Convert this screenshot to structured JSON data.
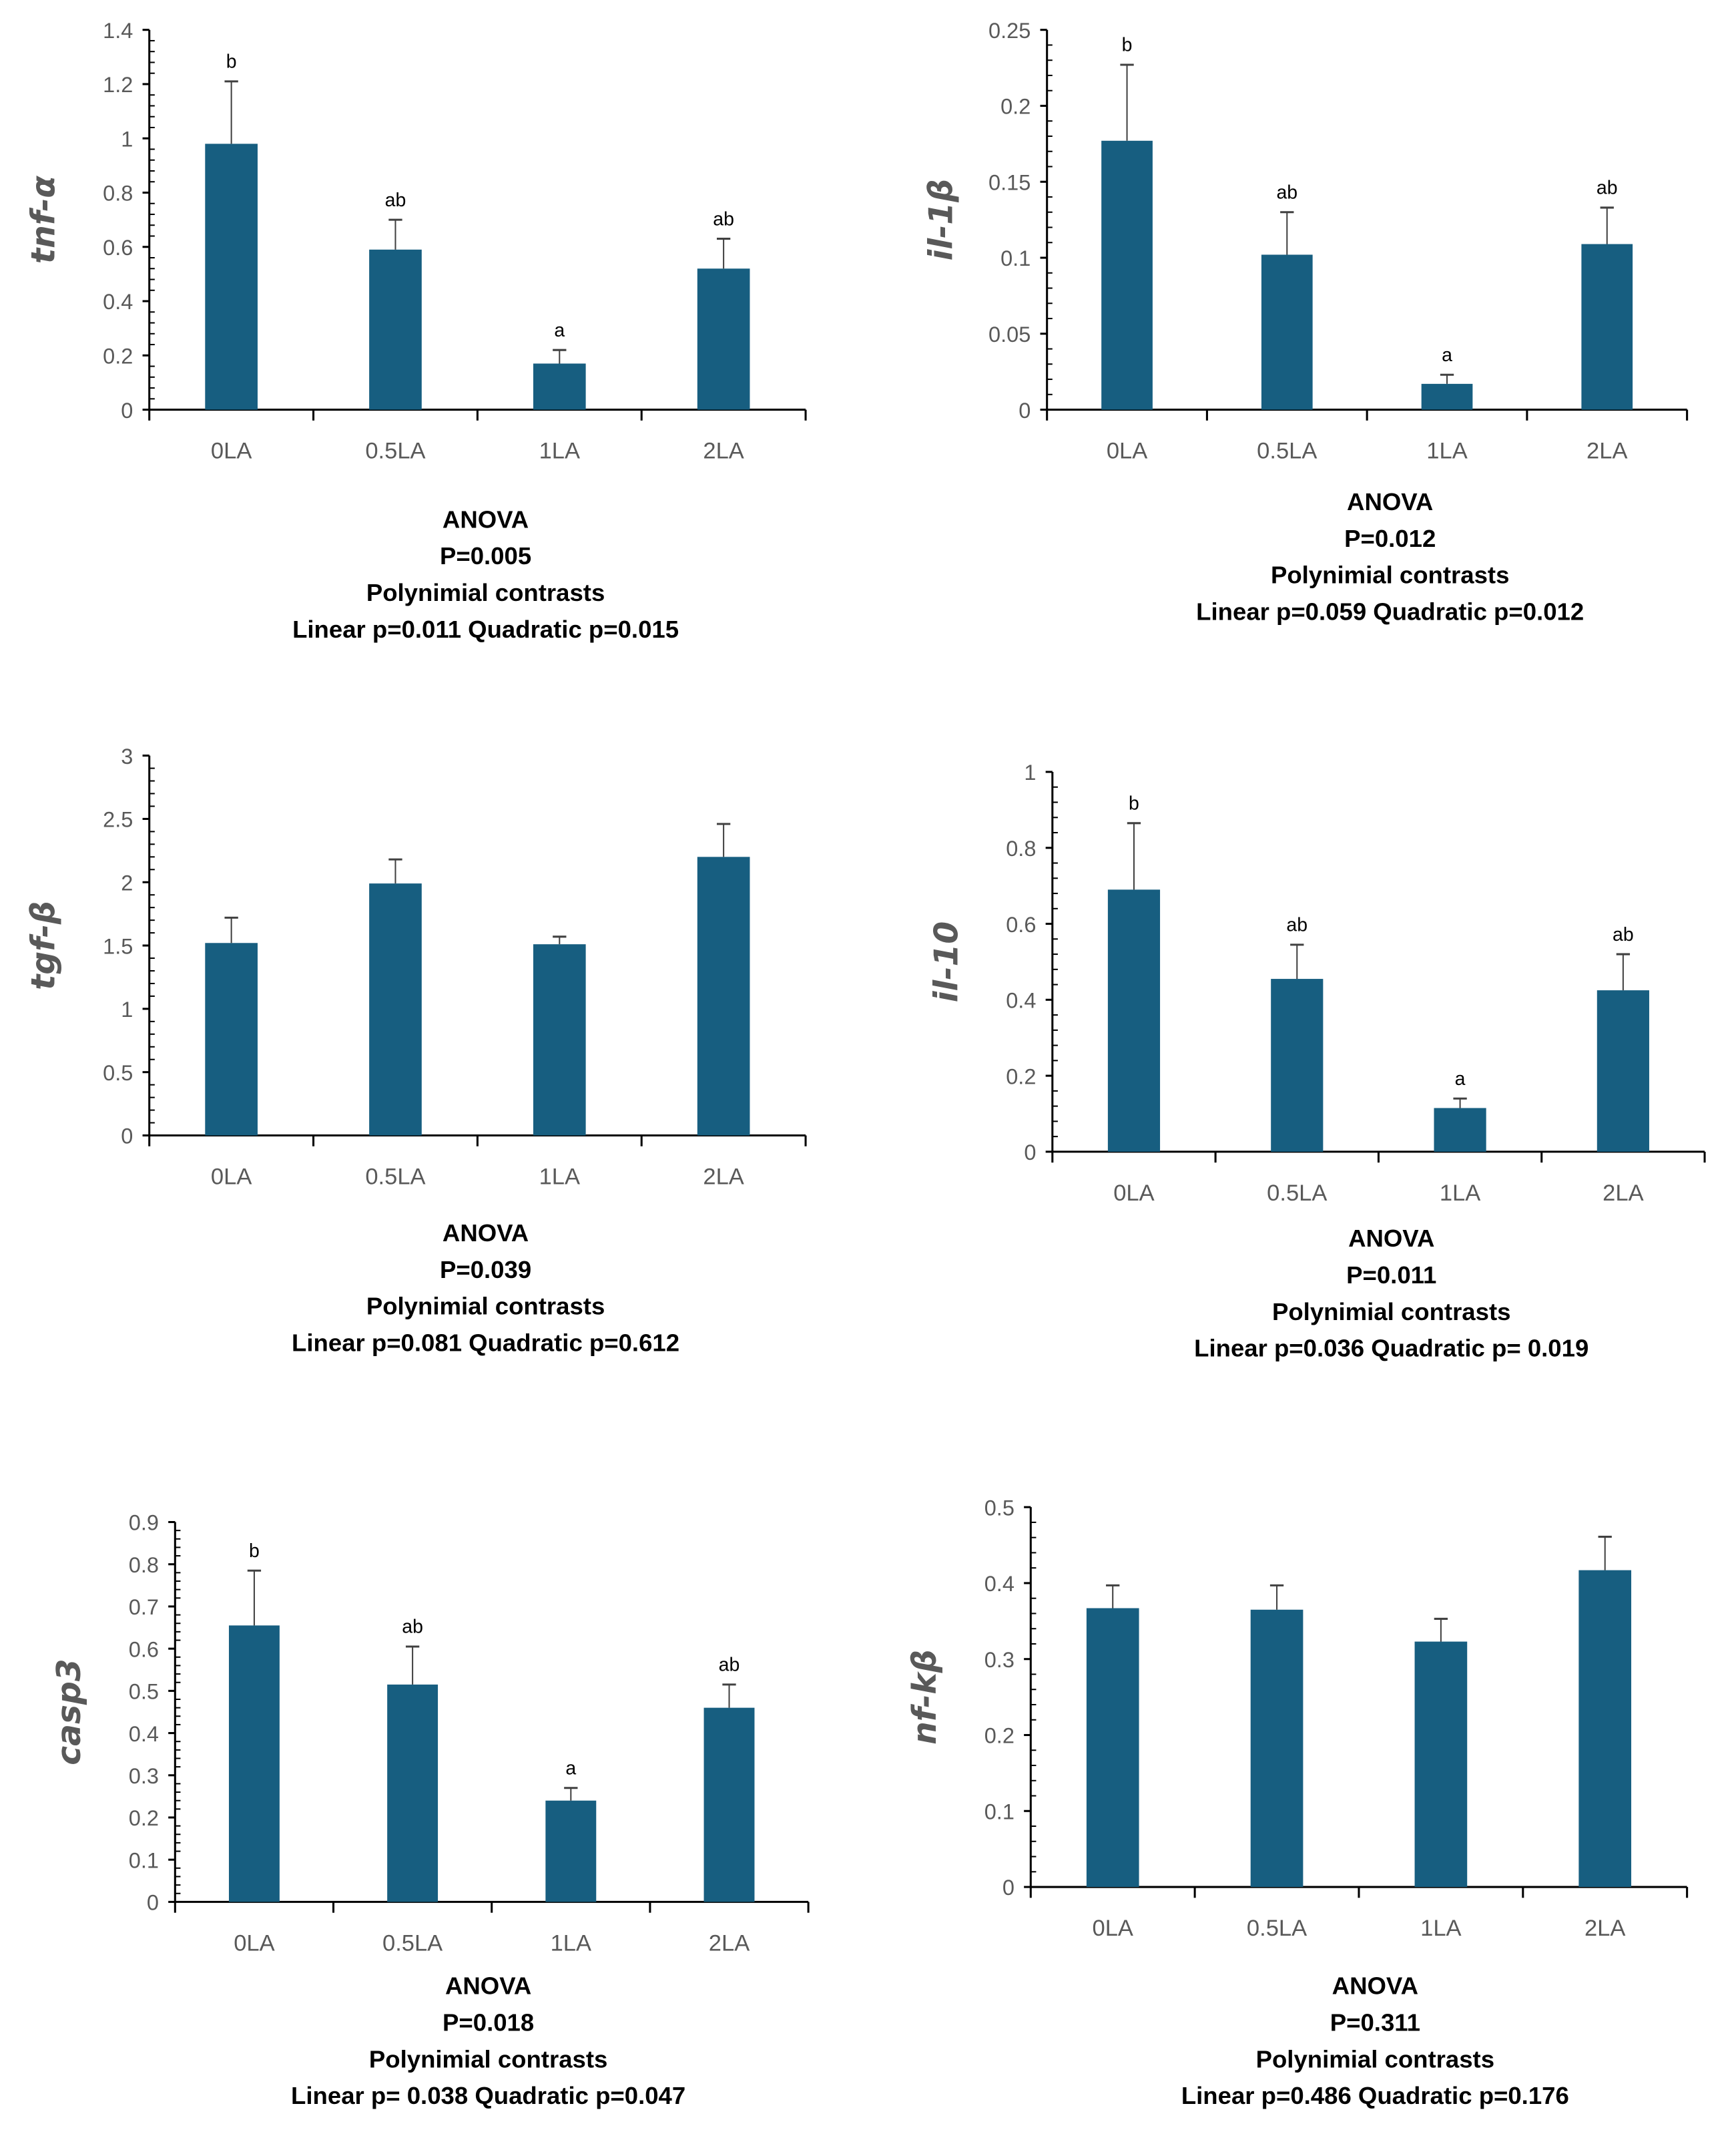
{
  "colors": {
    "bar": "#175e80",
    "axis": "#000000",
    "error_bar": "#404040",
    "tick_label": "#595959"
  },
  "chart_data": [
    {
      "type": "bar",
      "ylabel": "tnf-α",
      "categories": [
        "0LA",
        "0.5LA",
        "1LA",
        "2LA"
      ],
      "values": [
        0.98,
        0.59,
        0.17,
        0.52
      ],
      "error": [
        0.23,
        0.11,
        0.05,
        0.11
      ],
      "letters": [
        "b",
        "ab",
        "a",
        "ab"
      ],
      "ylim": [
        0,
        1.4
      ],
      "yticks": [
        "0",
        "0.2",
        "0.4",
        "0.6",
        "0.8",
        "1",
        "1.2",
        "1.4"
      ],
      "grid": false,
      "caption": [
        "ANOVA",
        "P=0.005",
        "Polynimial contrasts",
        "Linear p=0.011    Quadratic p=0.015"
      ]
    },
    {
      "type": "bar",
      "ylabel": "il-1β",
      "categories": [
        "0LA",
        "0.5LA",
        "1LA",
        "2LA"
      ],
      "values": [
        0.177,
        0.102,
        0.017,
        0.109
      ],
      "error": [
        0.05,
        0.028,
        0.006,
        0.024
      ],
      "letters": [
        "b",
        "ab",
        "a",
        "ab"
      ],
      "ylim": [
        0,
        0.25
      ],
      "yticks": [
        "0",
        "0.05",
        "0.1",
        "0.15",
        "0.2",
        "0.25"
      ],
      "grid": false,
      "caption": [
        "ANOVA",
        "P=0.012",
        "Polynimial contrasts",
        "Linear p=0.059    Quadratic p=0.012"
      ]
    },
    {
      "type": "bar",
      "ylabel": "tgf-β",
      "categories": [
        "0LA",
        "0.5LA",
        "1LA",
        "2LA"
      ],
      "values": [
        1.52,
        1.99,
        1.51,
        2.2
      ],
      "error": [
        0.2,
        0.19,
        0.06,
        0.26
      ],
      "letters": [
        "",
        "",
        "",
        ""
      ],
      "ylim": [
        0,
        3
      ],
      "yticks": [
        "0",
        "0.5",
        "1",
        "1.5",
        "2",
        "2.5",
        "3"
      ],
      "grid": false,
      "caption": [
        "ANOVA",
        "P=0.039",
        "Polynimial contrasts",
        "Linear p=0.081    Quadratic p=0.612"
      ]
    },
    {
      "type": "bar",
      "ylabel": "il-10",
      "categories": [
        "0LA",
        "0.5LA",
        "1LA",
        "2LA"
      ],
      "values": [
        0.69,
        0.455,
        0.115,
        0.425
      ],
      "error": [
        0.175,
        0.09,
        0.025,
        0.095
      ],
      "letters": [
        "b",
        "ab",
        "a",
        "ab"
      ],
      "ylim": [
        0,
        1
      ],
      "yticks": [
        "0",
        "0.2",
        "0.4",
        "0.6",
        "0.8",
        "1"
      ],
      "grid": false,
      "caption": [
        "ANOVA",
        "P=0.011",
        "Polynimial contrasts",
        "Linear p=0.036    Quadratic p= 0.019"
      ]
    },
    {
      "type": "bar",
      "ylabel": "casp3",
      "categories": [
        "0LA",
        "0.5LA",
        "1LA",
        "2LA"
      ],
      "values": [
        0.655,
        0.515,
        0.24,
        0.46
      ],
      "error": [
        0.13,
        0.09,
        0.03,
        0.055
      ],
      "letters": [
        "b",
        "ab",
        "a",
        "ab"
      ],
      "ylim": [
        0,
        0.9
      ],
      "yticks": [
        "0",
        "0.1",
        "0.2",
        "0.3",
        "0.4",
        "0.5",
        "0.6",
        "0.7",
        "0.8",
        "0.9"
      ],
      "grid": false,
      "caption": [
        "ANOVA",
        "P=0.018",
        "Polynimial contrasts",
        "Linear p= 0.038  Quadratic p=0.047"
      ]
    },
    {
      "type": "bar",
      "ylabel": "nf-kβ",
      "categories": [
        "0LA",
        "0.5LA",
        "1LA",
        "2LA"
      ],
      "values": [
        0.367,
        0.365,
        0.323,
        0.417
      ],
      "error": [
        0.03,
        0.032,
        0.03,
        0.044
      ],
      "letters": [
        "",
        "",
        "",
        ""
      ],
      "ylim": [
        0,
        0.5
      ],
      "yticks": [
        "0",
        "0.1",
        "0.2",
        "0.3",
        "0.4",
        "0.5"
      ],
      "grid": false,
      "caption": [
        "ANOVA",
        "P=0.311",
        "Polynimial contrasts",
        "Linear p=0.486    Quadratic p=0.176"
      ]
    }
  ]
}
